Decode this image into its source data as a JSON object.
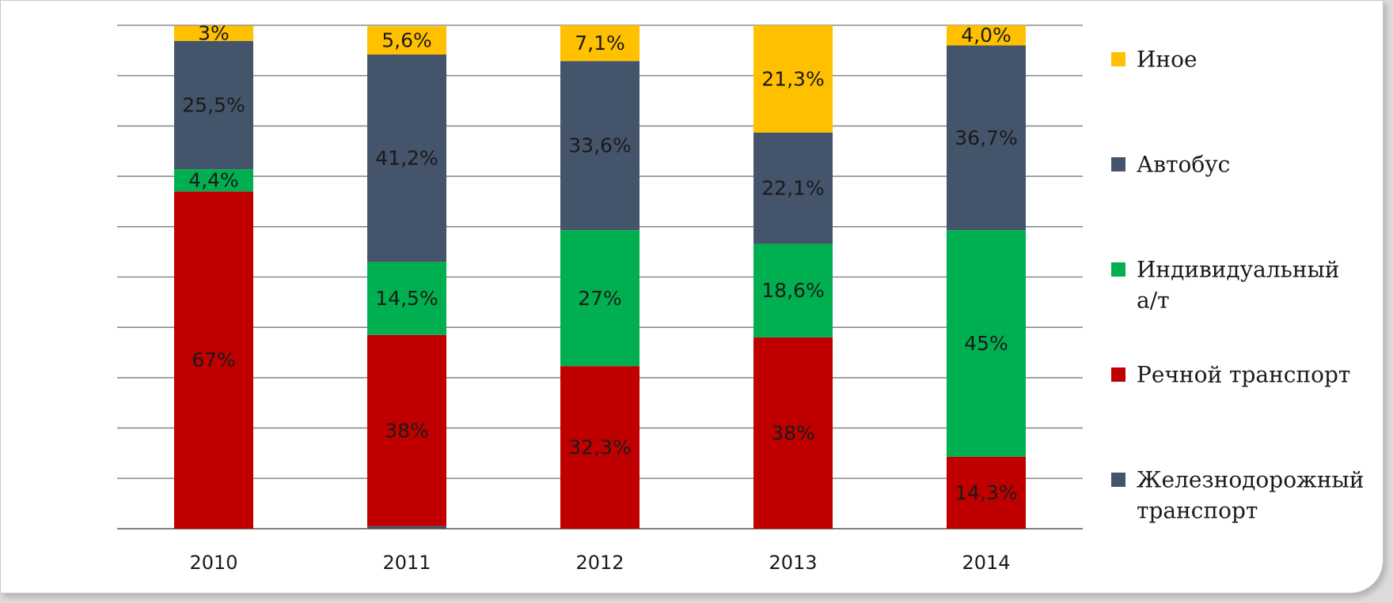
{
  "chart_data": {
    "type": "bar",
    "stacked": true,
    "title": "",
    "xlabel": "",
    "ylabel": "",
    "ylim": [
      0,
      100
    ],
    "grid": true,
    "legend_position": "right",
    "categories": [
      "2010",
      "2011",
      "2012",
      "2013",
      "2014"
    ],
    "series": [
      {
        "name": "Железнодорожный транспорт",
        "legend_lines": [
          "Железнодорожный",
          "транспорт"
        ],
        "color": "#44546a",
        "values": [
          0,
          0.5,
          0,
          0,
          0
        ],
        "labels": [
          "",
          "",
          "",
          "",
          ""
        ]
      },
      {
        "name": "Речной транспорт",
        "legend_lines": [
          "Речной транспорт"
        ],
        "color": "#c00000",
        "values": [
          67,
          38,
          32.3,
          38,
          14.3
        ],
        "labels": [
          "67%",
          "38%",
          "32,3%",
          "38%",
          "14,3%"
        ]
      },
      {
        "name": "Индивидуальный а/т",
        "legend_lines": [
          "Индивидуальный",
          "а/т"
        ],
        "color": "#00b050",
        "values": [
          4.4,
          14.5,
          27,
          18.6,
          45
        ],
        "labels": [
          "4,4%",
          "14,5%",
          "27%",
          "18,6%",
          "45%"
        ]
      },
      {
        "name": "Автобус",
        "legend_lines": [
          "Автобус"
        ],
        "color": "#44546a",
        "values": [
          25.5,
          41.2,
          33.6,
          22.1,
          36.7
        ],
        "labels": [
          "25,5%",
          "41,2%",
          "33,6%",
          "22,1%",
          "36,7%"
        ]
      },
      {
        "name": "Иное",
        "legend_lines": [
          "Иное"
        ],
        "color": "#ffc000",
        "values": [
          3,
          5.6,
          7.1,
          21.3,
          4.0
        ],
        "labels": [
          "3%",
          "5,6%",
          "7,1%",
          "21,3%",
          "4,0%"
        ]
      }
    ],
    "legend_order": [
      "Иное",
      "Автобус",
      "Индивидуальный а/т",
      "Речной транспорт",
      "Железнодорожный транспорт"
    ]
  }
}
